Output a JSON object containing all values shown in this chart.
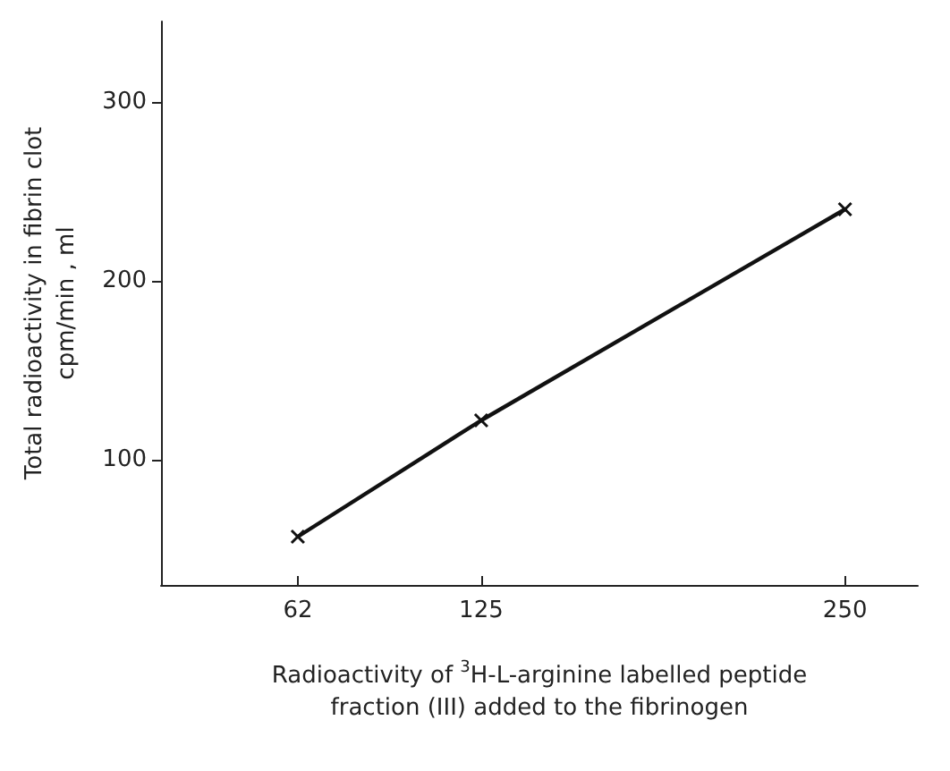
{
  "chart_data": {
    "type": "line",
    "xlabel": "Radioactivity of $^{3}$H-L-arginine labelled peptide fraction (III) added to the fibrinogen",
    "ylabel": "Total radioactivity in fibrin clot\ncpm/min , ml",
    "x": [
      62,
      125,
      250
    ],
    "series": [
      {
        "color": "#111111",
        "values": [
          57,
          122,
          240
        ]
      }
    ],
    "xlim": [
      15,
      275
    ],
    "xticks": [
      62,
      125,
      250
    ],
    "ylim": [
      30,
      345
    ],
    "yticks": [
      100,
      200,
      300
    ],
    "grid": false,
    "marker": "cross",
    "line_style": "solid"
  }
}
